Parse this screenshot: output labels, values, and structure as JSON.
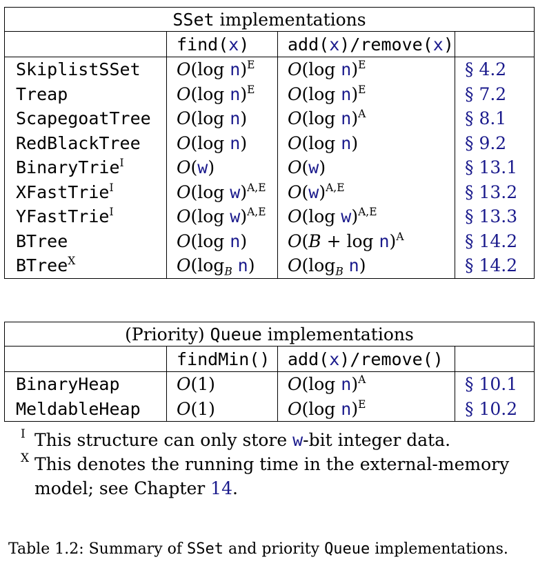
{
  "sset": {
    "title_mono": "SSet",
    "title_rest": " implementations",
    "headers": {
      "find": "find(x)",
      "add_remove": "add(x)/remove(x)"
    },
    "rows": [
      {
        "name": "SkiplistSSet",
        "name_sup": "",
        "find": "O(log n)",
        "find_sup": "E",
        "add": "O(log n)",
        "add_sup": "E",
        "ref": "§ 4.2"
      },
      {
        "name": "Treap",
        "name_sup": "",
        "find": "O(log n)",
        "find_sup": "E",
        "add": "O(log n)",
        "add_sup": "E",
        "ref": "§ 7.2"
      },
      {
        "name": "ScapegoatTree",
        "name_sup": "",
        "find": "O(log n)",
        "find_sup": "",
        "add": "O(log n)",
        "add_sup": "A",
        "ref": "§ 8.1"
      },
      {
        "name": "RedBlackTree",
        "name_sup": "",
        "find": "O(log n)",
        "find_sup": "",
        "add": "O(log n)",
        "add_sup": "",
        "ref": "§ 9.2"
      },
      {
        "name": "BinaryTrie",
        "name_sup": "I",
        "find": "O(w)",
        "find_sup": "",
        "add": "O(w)",
        "add_sup": "",
        "ref": "§ 13.1"
      },
      {
        "name": "XFastTrie",
        "name_sup": "I",
        "find": "O(log w)",
        "find_sup": "A,E",
        "add": "O(w)",
        "add_sup": "A,E",
        "ref": "§ 13.2"
      },
      {
        "name": "YFastTrie",
        "name_sup": "I",
        "find": "O(log w)",
        "find_sup": "A,E",
        "add": "O(log w)",
        "add_sup": "A,E",
        "ref": "§ 13.3"
      },
      {
        "name": "BTree",
        "name_sup": "",
        "find": "O(log n)",
        "find_sup": "",
        "add": "O(B + log n)",
        "add_sup": "A",
        "ref": "§ 14.2"
      },
      {
        "name": "BTree",
        "name_sup": "X",
        "find": "O(log_B n)",
        "find_sup": "",
        "add": "O(log_B n)",
        "add_sup": "",
        "ref": "§ 14.2"
      }
    ]
  },
  "queue": {
    "title_pre": "(Priority) ",
    "title_mono": "Queue",
    "title_rest": " implementations",
    "headers": {
      "find_min": "findMin()",
      "add_remove": "add(x)/remove()"
    },
    "rows": [
      {
        "name": "BinaryHeap",
        "find": "O(1)",
        "add": "O(log n)",
        "add_sup": "A",
        "ref": "§ 10.1"
      },
      {
        "name": "MeldableHeap",
        "find": "O(1)",
        "add": "O(log n)",
        "add_sup": "E",
        "ref": "§ 10.2"
      }
    ]
  },
  "notes": {
    "i_mark": "I",
    "i_pre": "This structure can only store ",
    "i_var": "w",
    "i_post": "-bit integer data.",
    "x_mark": "X",
    "x_line1": "This denotes the running time in the external-memory",
    "x_line2_pre": "model; see Chapter ",
    "x_line2_ref": "14",
    "x_line2_post": "."
  },
  "caption": {
    "pre": "Table 1.2: Summary of ",
    "mono1": "SSet",
    "mid": " and priority ",
    "mono2": "Queue",
    "post": " implementations."
  }
}
